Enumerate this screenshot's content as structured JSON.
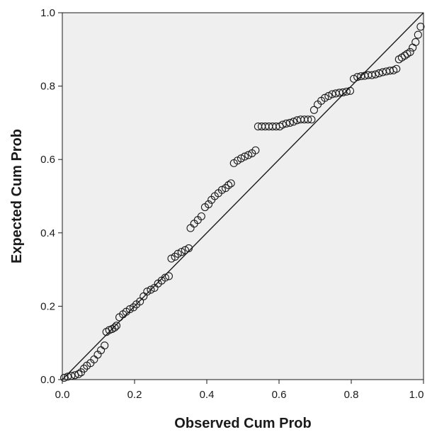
{
  "chart_data": {
    "type": "scatter",
    "title": "",
    "xlabel": "Observed Cum Prob",
    "ylabel": "Expected Cum Prob",
    "xlim": [
      0,
      1
    ],
    "ylim": [
      0,
      1
    ],
    "x_ticks": [
      "0.0",
      "0.2",
      "0.4",
      "0.6",
      "0.8",
      "1.0"
    ],
    "y_ticks": [
      "0.0",
      "0.2",
      "0.4",
      "0.6",
      "0.8",
      "1.0"
    ],
    "grid": false,
    "legend": "none",
    "reference_line": {
      "from": [
        0,
        0
      ],
      "to": [
        1,
        1
      ]
    },
    "colors": {
      "plot_background": "#efefef",
      "marker": "#1a1a1a",
      "line": "#1a1a1a"
    },
    "series": [
      {
        "points": [
          [
            0.005,
            0.005
          ],
          [
            0.015,
            0.008
          ],
          [
            0.025,
            0.01
          ],
          [
            0.035,
            0.012
          ],
          [
            0.045,
            0.015
          ],
          [
            0.052,
            0.02
          ],
          [
            0.06,
            0.03
          ],
          [
            0.068,
            0.038
          ],
          [
            0.078,
            0.045
          ],
          [
            0.088,
            0.055
          ],
          [
            0.098,
            0.068
          ],
          [
            0.107,
            0.08
          ],
          [
            0.117,
            0.093
          ],
          [
            0.122,
            0.13
          ],
          [
            0.13,
            0.135
          ],
          [
            0.138,
            0.138
          ],
          [
            0.145,
            0.142
          ],
          [
            0.15,
            0.147
          ],
          [
            0.158,
            0.17
          ],
          [
            0.168,
            0.178
          ],
          [
            0.177,
            0.185
          ],
          [
            0.187,
            0.192
          ],
          [
            0.197,
            0.197
          ],
          [
            0.205,
            0.205
          ],
          [
            0.215,
            0.213
          ],
          [
            0.225,
            0.227
          ],
          [
            0.235,
            0.24
          ],
          [
            0.245,
            0.245
          ],
          [
            0.255,
            0.25
          ],
          [
            0.265,
            0.262
          ],
          [
            0.275,
            0.27
          ],
          [
            0.285,
            0.278
          ],
          [
            0.295,
            0.282
          ],
          [
            0.302,
            0.33
          ],
          [
            0.312,
            0.335
          ],
          [
            0.32,
            0.343
          ],
          [
            0.33,
            0.348
          ],
          [
            0.34,
            0.353
          ],
          [
            0.35,
            0.358
          ],
          [
            0.355,
            0.413
          ],
          [
            0.365,
            0.425
          ],
          [
            0.375,
            0.435
          ],
          [
            0.385,
            0.445
          ],
          [
            0.395,
            0.47
          ],
          [
            0.405,
            0.478
          ],
          [
            0.413,
            0.49
          ],
          [
            0.422,
            0.5
          ],
          [
            0.432,
            0.508
          ],
          [
            0.442,
            0.517
          ],
          [
            0.452,
            0.522
          ],
          [
            0.46,
            0.53
          ],
          [
            0.467,
            0.535
          ],
          [
            0.475,
            0.59
          ],
          [
            0.485,
            0.597
          ],
          [
            0.495,
            0.603
          ],
          [
            0.505,
            0.608
          ],
          [
            0.515,
            0.612
          ],
          [
            0.525,
            0.617
          ],
          [
            0.535,
            0.625
          ],
          [
            0.542,
            0.69
          ],
          [
            0.552,
            0.69
          ],
          [
            0.562,
            0.69
          ],
          [
            0.572,
            0.69
          ],
          [
            0.582,
            0.69
          ],
          [
            0.592,
            0.69
          ],
          [
            0.602,
            0.69
          ],
          [
            0.61,
            0.695
          ],
          [
            0.62,
            0.698
          ],
          [
            0.63,
            0.7
          ],
          [
            0.64,
            0.703
          ],
          [
            0.65,
            0.707
          ],
          [
            0.66,
            0.709
          ],
          [
            0.67,
            0.709
          ],
          [
            0.68,
            0.709
          ],
          [
            0.69,
            0.709
          ],
          [
            0.697,
            0.735
          ],
          [
            0.707,
            0.75
          ],
          [
            0.717,
            0.76
          ],
          [
            0.727,
            0.768
          ],
          [
            0.737,
            0.773
          ],
          [
            0.747,
            0.778
          ],
          [
            0.757,
            0.78
          ],
          [
            0.767,
            0.782
          ],
          [
            0.777,
            0.783
          ],
          [
            0.787,
            0.785
          ],
          [
            0.797,
            0.787
          ],
          [
            0.807,
            0.82
          ],
          [
            0.817,
            0.825
          ],
          [
            0.827,
            0.827
          ],
          [
            0.837,
            0.828
          ],
          [
            0.847,
            0.83
          ],
          [
            0.857,
            0.83
          ],
          [
            0.867,
            0.832
          ],
          [
            0.877,
            0.835
          ],
          [
            0.887,
            0.838
          ],
          [
            0.897,
            0.84
          ],
          [
            0.907,
            0.842
          ],
          [
            0.917,
            0.843
          ],
          [
            0.925,
            0.847
          ],
          [
            0.932,
            0.873
          ],
          [
            0.94,
            0.878
          ],
          [
            0.948,
            0.883
          ],
          [
            0.955,
            0.888
          ],
          [
            0.963,
            0.893
          ],
          [
            0.97,
            0.905
          ],
          [
            0.978,
            0.92
          ],
          [
            0.985,
            0.94
          ],
          [
            0.992,
            0.962
          ]
        ]
      }
    ]
  }
}
